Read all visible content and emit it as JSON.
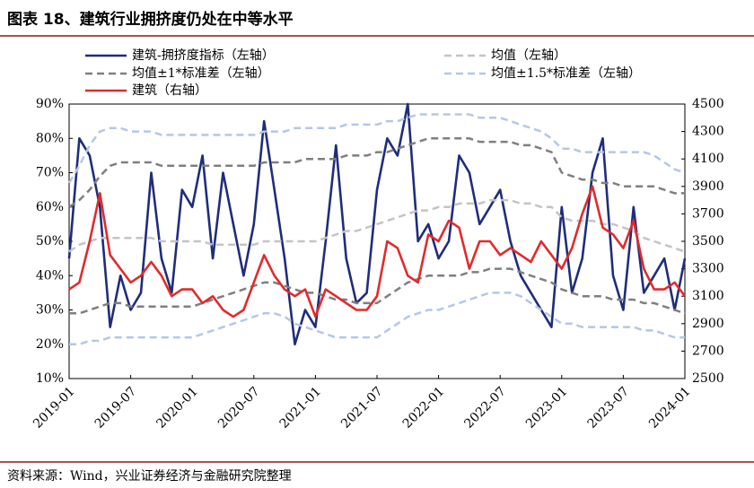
{
  "chart_data": {
    "type": "line",
    "title": "图表 18、建筑行业拥挤度仍处在中等水平",
    "source": "资料来源：Wind，兴业证券经济与金融研究院整理",
    "categories": [
      "2019-01",
      null,
      null,
      null,
      null,
      null,
      "2019-07",
      null,
      null,
      null,
      null,
      null,
      "2020-01",
      null,
      null,
      null,
      null,
      null,
      "2020-07",
      null,
      null,
      null,
      null,
      null,
      "2021-01",
      null,
      null,
      null,
      null,
      null,
      "2021-07",
      null,
      null,
      null,
      null,
      null,
      "2022-01",
      null,
      null,
      null,
      null,
      null,
      "2022-07",
      null,
      null,
      null,
      null,
      null,
      "2023-01",
      null,
      null,
      null,
      null,
      null,
      "2023-07",
      null,
      null,
      null,
      null,
      null,
      "2024-01"
    ],
    "series": [
      {
        "name": "建筑-拥挤度指标（左轴）",
        "color": "#1f2d7b",
        "dash": false,
        "values": [
          45,
          80,
          75,
          60,
          25,
          40,
          30,
          35,
          70,
          45,
          35,
          65,
          60,
          75,
          45,
          70,
          55,
          40,
          55,
          85,
          65,
          45,
          20,
          30,
          25,
          50,
          78,
          45,
          32,
          35,
          65,
          80,
          75,
          90,
          50,
          55,
          45,
          50,
          75,
          70,
          55,
          60,
          65,
          50,
          40,
          35,
          30,
          25,
          60,
          35,
          45,
          70,
          80,
          40,
          30,
          60,
          35,
          40,
          45,
          30,
          45
        ]
      },
      {
        "name": "均值（左轴）",
        "color": "#c4c4c4",
        "dash": true,
        "values": [
          47,
          49,
          50,
          51,
          51,
          51,
          51,
          51,
          51,
          50,
          50,
          50,
          50,
          50,
          49,
          49,
          49,
          49,
          49,
          50,
          50,
          50,
          50,
          50,
          50,
          51,
          52,
          53,
          53,
          54,
          55,
          56,
          57,
          58,
          59,
          59,
          60,
          60,
          61,
          61,
          61,
          62,
          62,
          62,
          61,
          61,
          60,
          60,
          57,
          56,
          56,
          56,
          55,
          55,
          54,
          53,
          51,
          50,
          49,
          48,
          47
        ]
      },
      {
        "name": "均值±1*标准差（左轴）",
        "color": "#7f7f7f",
        "dash": true,
        "values": [
          60,
          62,
          65,
          69,
          72,
          73,
          73,
          73,
          73,
          72,
          72,
          72,
          72,
          72,
          72,
          72,
          72,
          72,
          72,
          73,
          73,
          73,
          73,
          74,
          74,
          74,
          74,
          75,
          75,
          75,
          76,
          76,
          77,
          78,
          79,
          80,
          80,
          80,
          80,
          80,
          79,
          79,
          79,
          79,
          78,
          78,
          77,
          76,
          70,
          69,
          68,
          68,
          67,
          67,
          66,
          66,
          66,
          66,
          65,
          64,
          64
        ],
        "lower": [
          29,
          29,
          30,
          31,
          32,
          32,
          31,
          31,
          31,
          31,
          31,
          31,
          31,
          32,
          33,
          34,
          35,
          36,
          37,
          38,
          38,
          37,
          36,
          35,
          35,
          34,
          33,
          33,
          32,
          32,
          32,
          34,
          36,
          38,
          39,
          40,
          40,
          40,
          40,
          41,
          41,
          42,
          42,
          42,
          41,
          40,
          39,
          38,
          36,
          35,
          34,
          34,
          34,
          33,
          33,
          33,
          32,
          32,
          31,
          30,
          29
        ]
      },
      {
        "name": "均值±1.5*标准差（左轴）",
        "color": "#b4c7e7",
        "dash": true,
        "values": [
          67,
          72,
          78,
          82,
          83,
          83,
          82,
          82,
          82,
          81,
          81,
          81,
          81,
          81,
          81,
          81,
          81,
          81,
          81,
          82,
          82,
          82,
          83,
          83,
          83,
          83,
          83,
          84,
          84,
          84,
          84,
          85,
          85,
          86,
          87,
          87,
          87,
          87,
          87,
          87,
          86,
          86,
          86,
          85,
          84,
          83,
          82,
          80,
          77,
          77,
          76,
          76,
          76,
          76,
          76,
          76,
          76,
          75,
          73,
          71,
          70
        ],
        "lower": [
          20,
          20,
          21,
          21,
          22,
          22,
          22,
          22,
          22,
          22,
          22,
          22,
          22,
          23,
          24,
          25,
          26,
          27,
          28,
          29,
          29,
          28,
          26,
          25,
          24,
          23,
          22,
          22,
          22,
          22,
          22,
          24,
          26,
          28,
          29,
          30,
          30,
          31,
          32,
          33,
          34,
          35,
          35,
          35,
          34,
          32,
          30,
          28,
          26,
          26,
          25,
          25,
          25,
          25,
          25,
          25,
          24,
          24,
          23,
          22,
          22
        ]
      },
      {
        "name": "建筑（右轴）",
        "color": "#e02b2b",
        "dash": false,
        "axis": "y2",
        "values": [
          3150,
          3200,
          3500,
          3850,
          3400,
          3300,
          3200,
          3250,
          3350,
          3250,
          3100,
          3150,
          3150,
          3050,
          3100,
          3000,
          2950,
          3000,
          3200,
          3400,
          3250,
          3150,
          3100,
          3150,
          2950,
          3150,
          3100,
          3050,
          3000,
          3000,
          3100,
          3500,
          3450,
          3250,
          3200,
          3550,
          3500,
          3650,
          3600,
          3300,
          3500,
          3500,
          3400,
          3450,
          3400,
          3350,
          3500,
          3400,
          3300,
          3450,
          3700,
          3900,
          3600,
          3550,
          3450,
          3650,
          3300,
          3150,
          3150,
          3200,
          3100
        ]
      }
    ],
    "ylim": [
      10,
      90
    ],
    "yticks": [
      {
        "value": 10,
        "label": "10%"
      },
      {
        "value": 20,
        "label": "20%"
      },
      {
        "value": 30,
        "label": "30%"
      },
      {
        "value": 40,
        "label": "40%"
      },
      {
        "value": 50,
        "label": "50%"
      },
      {
        "value": 60,
        "label": "60%"
      },
      {
        "value": 70,
        "label": "70%"
      },
      {
        "value": 80,
        "label": "80%"
      },
      {
        "value": 90,
        "label": "90%"
      }
    ],
    "y2lim": [
      2500,
      4500
    ],
    "y2ticks": [
      2500,
      2700,
      2900,
      3100,
      3300,
      3500,
      3700,
      3900,
      4100,
      4300,
      4500
    ],
    "legend": "top"
  }
}
